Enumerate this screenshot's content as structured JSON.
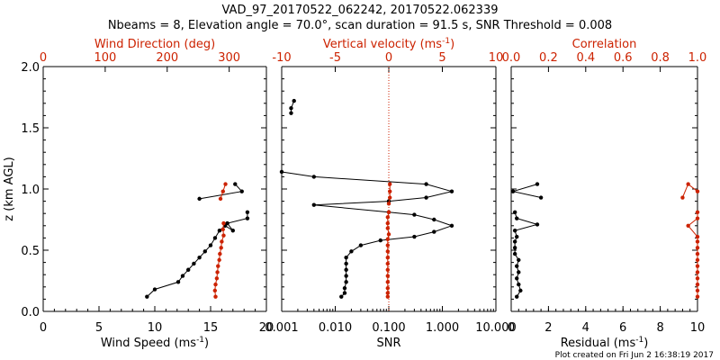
{
  "figure": {
    "title": "VAD_97_20170522_062242, 20170522.062339",
    "subtitle": "Nbeams = 8, Elevation angle = 70.0°, scan duration = 91.5 s, SNR Threshold = 0.008",
    "footer": "Plot created on Fri Jun  2 16:38:19 2017",
    "colors": {
      "primary": "#000000",
      "secondary": "#cc2200"
    }
  },
  "chart_data": [
    {
      "type": "line",
      "panel": "wind",
      "ylabel": "z (km AGL)",
      "ylim": [
        0,
        2.0
      ],
      "yticks": [
        "0.0",
        "0.5",
        "1.0",
        "1.5",
        "2.0"
      ],
      "xlabel": "Wind Speed (ms",
      "xlabel_unit_sup": "-1",
      "xlabel_close": ")",
      "xlim": [
        0,
        20
      ],
      "xticks": [
        "0",
        "5",
        "10",
        "15",
        "20"
      ],
      "xlabel_top": "Wind Direction (deg)",
      "xlim_top": [
        0,
        360
      ],
      "xticks_top": [
        "0",
        "100",
        "200",
        "300"
      ],
      "series": [
        {
          "color": "#000000",
          "axis": "bottom",
          "points": [
            [
              9.3,
              0.12
            ],
            [
              10.0,
              0.18
            ],
            [
              12.1,
              0.24
            ],
            [
              12.5,
              0.29
            ],
            [
              13.0,
              0.34
            ],
            [
              13.5,
              0.39
            ],
            [
              14.0,
              0.44
            ],
            [
              14.5,
              0.49
            ],
            [
              15.0,
              0.54
            ],
            [
              15.4,
              0.6
            ],
            [
              15.8,
              0.66
            ],
            [
              16.3,
              0.7
            ],
            [
              17.0,
              0.66
            ],
            [
              16.5,
              0.72
            ],
            [
              18.3,
              0.76
            ],
            [
              18.3,
              0.81
            ],
            [
              null,
              null
            ],
            [
              14.0,
              0.92
            ],
            [
              17.8,
              0.98
            ],
            [
              17.2,
              1.04
            ]
          ]
        },
        {
          "color": "#cc2200",
          "axis": "top",
          "points": [
            [
              278,
              0.12
            ],
            [
              277,
              0.17
            ],
            [
              278,
              0.22
            ],
            [
              280,
              0.27
            ],
            [
              281,
              0.32
            ],
            [
              282,
              0.37
            ],
            [
              284,
              0.42
            ],
            [
              285,
              0.47
            ],
            [
              287,
              0.52
            ],
            [
              288,
              0.57
            ],
            [
              291,
              0.62
            ],
            [
              290,
              0.67
            ],
            [
              291,
              0.72
            ],
            [
              null,
              null
            ],
            [
              286,
              0.92
            ],
            [
              290,
              0.98
            ],
            [
              294,
              1.04
            ]
          ]
        }
      ]
    },
    {
      "type": "line",
      "panel": "snr",
      "ylim": [
        0,
        2.0
      ],
      "xlabel": "SNR",
      "xscale": "log",
      "xlim": [
        0.001,
        10
      ],
      "xticks": [
        "0.001",
        "0.010",
        "0.100",
        "1.000",
        "10.000"
      ],
      "xlabel_top": "Vertical velocity (ms",
      "xlabel_top_unit_sup": "-1",
      "xlabel_top_close": ")",
      "xlim_top": [
        -10,
        10
      ],
      "xticks_top": [
        "-10",
        "-5",
        "0",
        "5",
        "10"
      ],
      "reference_line_top_x": 0,
      "series": [
        {
          "color": "#000000",
          "axis": "bottom",
          "points": [
            [
              0.013,
              0.12
            ],
            [
              0.015,
              0.15
            ],
            [
              0.015,
              0.19
            ],
            [
              0.016,
              0.24
            ],
            [
              0.016,
              0.29
            ],
            [
              0.016,
              0.34
            ],
            [
              0.016,
              0.39
            ],
            [
              0.016,
              0.44
            ],
            [
              0.02,
              0.49
            ],
            [
              0.03,
              0.54
            ],
            [
              0.07,
              0.58
            ],
            [
              0.3,
              0.61
            ],
            [
              0.7,
              0.65
            ],
            [
              1.5,
              0.7
            ],
            [
              0.7,
              0.75
            ],
            [
              0.3,
              0.79
            ],
            [
              0.1,
              0.81
            ],
            [
              0.004,
              0.87
            ],
            [
              0.1,
              0.9
            ],
            [
              0.5,
              0.93
            ],
            [
              1.5,
              0.98
            ],
            [
              0.5,
              1.04
            ],
            [
              0.004,
              1.1
            ],
            [
              0.001,
              1.14
            ],
            [
              null,
              null
            ],
            [
              0.0015,
              1.62
            ],
            [
              0.0015,
              1.66
            ],
            [
              0.0017,
              1.72
            ]
          ]
        },
        {
          "color": "#cc2200",
          "axis": "top",
          "points": [
            [
              -0.1,
              0.12
            ],
            [
              -0.1,
              0.15
            ],
            [
              -0.1,
              0.19
            ],
            [
              -0.1,
              0.24
            ],
            [
              -0.1,
              0.29
            ],
            [
              -0.1,
              0.34
            ],
            [
              -0.1,
              0.39
            ],
            [
              -0.1,
              0.44
            ],
            [
              -0.1,
              0.49
            ],
            [
              -0.1,
              0.54
            ],
            [
              -0.1,
              0.59
            ],
            [
              0.0,
              0.63
            ],
            [
              -0.1,
              0.68
            ],
            [
              -0.1,
              0.72
            ],
            [
              -0.1,
              0.77
            ],
            [
              0.0,
              0.81
            ],
            [
              null,
              null
            ],
            [
              0.0,
              0.88
            ],
            [
              0.1,
              0.93
            ],
            [
              0.1,
              0.98
            ],
            [
              0.1,
              1.04
            ]
          ]
        }
      ]
    },
    {
      "type": "line",
      "panel": "residual",
      "ylim": [
        0,
        2.0
      ],
      "xlabel": "Residual (ms",
      "xlabel_unit_sup": "-1",
      "xlabel_close": ")",
      "xlim": [
        0,
        10
      ],
      "xticks": [
        "0",
        "2",
        "4",
        "6",
        "8",
        "10"
      ],
      "xlabel_top": "Correlation",
      "xlim_top": [
        0,
        1.0
      ],
      "xticks_top": [
        "0.0",
        "0.2",
        "0.4",
        "0.6",
        "0.8",
        "1.0"
      ],
      "series": [
        {
          "color": "#000000",
          "axis": "bottom",
          "points": [
            [
              0.3,
              0.12
            ],
            [
              0.5,
              0.17
            ],
            [
              0.4,
              0.22
            ],
            [
              0.3,
              0.27
            ],
            [
              0.4,
              0.32
            ],
            [
              0.3,
              0.37
            ],
            [
              0.4,
              0.42
            ],
            [
              0.2,
              0.47
            ],
            [
              0.2,
              0.52
            ],
            [
              0.2,
              0.57
            ],
            [
              0.3,
              0.61
            ],
            [
              0.2,
              0.66
            ],
            [
              1.4,
              0.71
            ],
            [
              0.3,
              0.76
            ],
            [
              0.2,
              0.81
            ],
            [
              null,
              null
            ],
            [
              1.6,
              0.93
            ],
            [
              0.1,
              0.98
            ],
            [
              1.4,
              1.04
            ]
          ]
        },
        {
          "color": "#cc2200",
          "axis": "top",
          "points": [
            [
              1.0,
              0.12
            ],
            [
              1.0,
              0.17
            ],
            [
              1.0,
              0.22
            ],
            [
              1.0,
              0.27
            ],
            [
              1.0,
              0.32
            ],
            [
              1.0,
              0.37
            ],
            [
              1.0,
              0.42
            ],
            [
              1.0,
              0.47
            ],
            [
              1.0,
              0.52
            ],
            [
              1.0,
              0.57
            ],
            [
              1.0,
              0.61
            ],
            [
              0.95,
              0.7
            ],
            [
              1.0,
              0.76
            ],
            [
              1.0,
              0.81
            ],
            [
              null,
              null
            ],
            [
              0.92,
              0.93
            ],
            [
              0.95,
              1.04
            ],
            [
              1.0,
              0.98
            ]
          ]
        }
      ]
    }
  ]
}
